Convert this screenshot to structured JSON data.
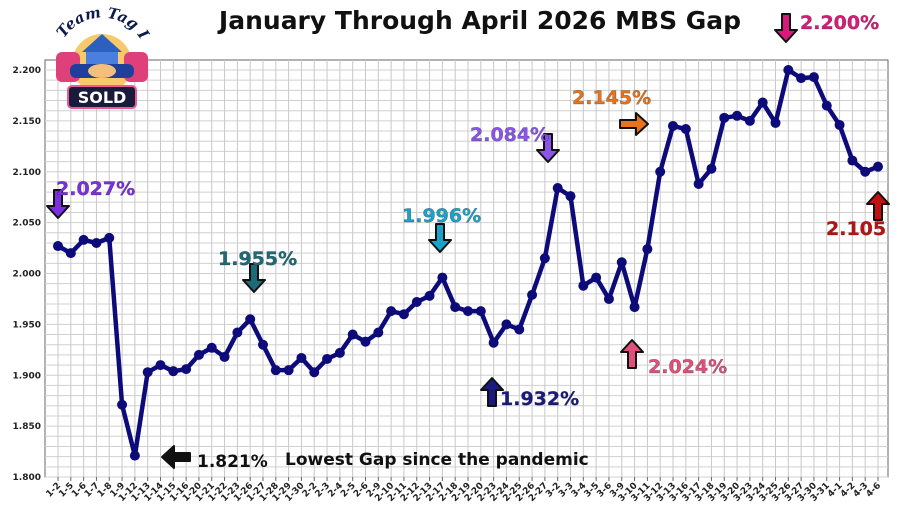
{
  "chart_data": {
    "type": "line",
    "title": "January Through April 2026 MBS Gap",
    "xlabel": "",
    "ylabel": "",
    "ylim": [
      1.8,
      2.2
    ],
    "yticks": [
      "1.800",
      "1.850",
      "1.900",
      "1.950",
      "2.000",
      "2.050",
      "2.100",
      "2.150",
      "2.200"
    ],
    "grid": true,
    "categories": [
      "1-2",
      "1-5",
      "1-6",
      "1-7",
      "1-8",
      "1-9",
      "1-12",
      "1-13",
      "1-14",
      "1-15",
      "1-16",
      "1-20",
      "1-21",
      "1-22",
      "1-23",
      "1-26",
      "1-27",
      "1-28",
      "1-29",
      "1-30",
      "2-2",
      "2-3",
      "2-4",
      "2-5",
      "2-6",
      "2-9",
      "2-10",
      "2-11",
      "2-12",
      "2-13",
      "2-17",
      "2-18",
      "2-19",
      "2-20",
      "2-23",
      "2-24",
      "2-25",
      "2-26",
      "2-27",
      "3-2",
      "3-3",
      "3-4",
      "3-5",
      "3-6",
      "3-9",
      "3-10",
      "3-11",
      "3-12",
      "3-13",
      "3-16",
      "3-17",
      "3-18",
      "3-19",
      "3-20",
      "3-23",
      "3-24",
      "3-25",
      "3-26",
      "3-27",
      "3-30",
      "3-31",
      "4-1",
      "4-2",
      "4-3",
      "4-6"
    ],
    "series": [
      {
        "name": "MBS Gap",
        "color": "#0d0a7a",
        "values": [
          2.027,
          2.02,
          2.033,
          2.03,
          2.035,
          1.871,
          1.821,
          1.903,
          1.91,
          1.904,
          1.906,
          1.92,
          1.927,
          1.918,
          1.942,
          1.955,
          1.93,
          1.905,
          1.905,
          1.917,
          1.903,
          1.916,
          1.922,
          1.94,
          1.933,
          1.942,
          1.963,
          1.96,
          1.972,
          1.978,
          1.996,
          1.967,
          1.963,
          1.963,
          1.932,
          1.95,
          1.945,
          1.979,
          2.015,
          2.084,
          2.076,
          1.988,
          1.996,
          1.975,
          2.011,
          1.967,
          2.024,
          2.1,
          2.145,
          2.142,
          2.088,
          2.103,
          2.153,
          2.155,
          2.15,
          2.168,
          2.148,
          2.2,
          2.192,
          2.193,
          2.165,
          2.146,
          2.111,
          2.1,
          2.105
        ]
      }
    ],
    "annotations": [
      {
        "text": "2.027%",
        "color": "#7b2fe0"
      },
      {
        "text": "1.821%",
        "color": "#111111"
      },
      {
        "text": "Lowest Gap since the pandemic",
        "color": "#111111"
      },
      {
        "text": "1.955%",
        "color": "#1e6b78"
      },
      {
        "text": "1.996%",
        "color": "#1aa3c8"
      },
      {
        "text": "1.932%",
        "color": "#1a1a80"
      },
      {
        "text": "2.084%",
        "color": "#8a55e8"
      },
      {
        "text": "2.024%",
        "color": "#e0507a"
      },
      {
        "text": "2.145%",
        "color": "#e8731a"
      },
      {
        "text": "2.200%",
        "color": "#d81b7a"
      },
      {
        "text": "2.105",
        "color": "#c01010"
      }
    ]
  },
  "logo": {
    "text_top": "Team Tag It",
    "text_badge": "SOLD"
  }
}
